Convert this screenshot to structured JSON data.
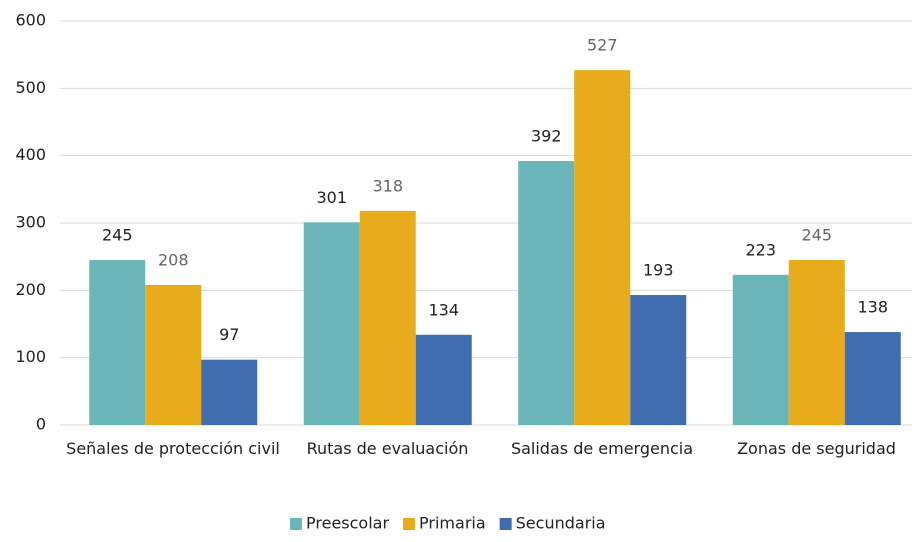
{
  "chart_data": {
    "type": "bar",
    "categories": [
      "Señales de protección civil",
      "Rutas de evaluación",
      "Salidas de emergencia",
      "Zonas de seguridad"
    ],
    "series": [
      {
        "name": "Preescolar",
        "color": "#6ab5b8",
        "values": [
          245,
          301,
          392,
          223
        ]
      },
      {
        "name": "Primaria",
        "color": "#e8ab1c",
        "values": [
          208,
          318,
          527,
          245
        ]
      },
      {
        "name": "Secundaria",
        "color": "#3f6db0",
        "values": [
          97,
          134,
          193,
          138
        ]
      }
    ],
    "ylim": [
      0,
      600
    ],
    "yticks": [
      0,
      100,
      200,
      300,
      400,
      500,
      600
    ],
    "grid": true,
    "legend": "bottom"
  }
}
